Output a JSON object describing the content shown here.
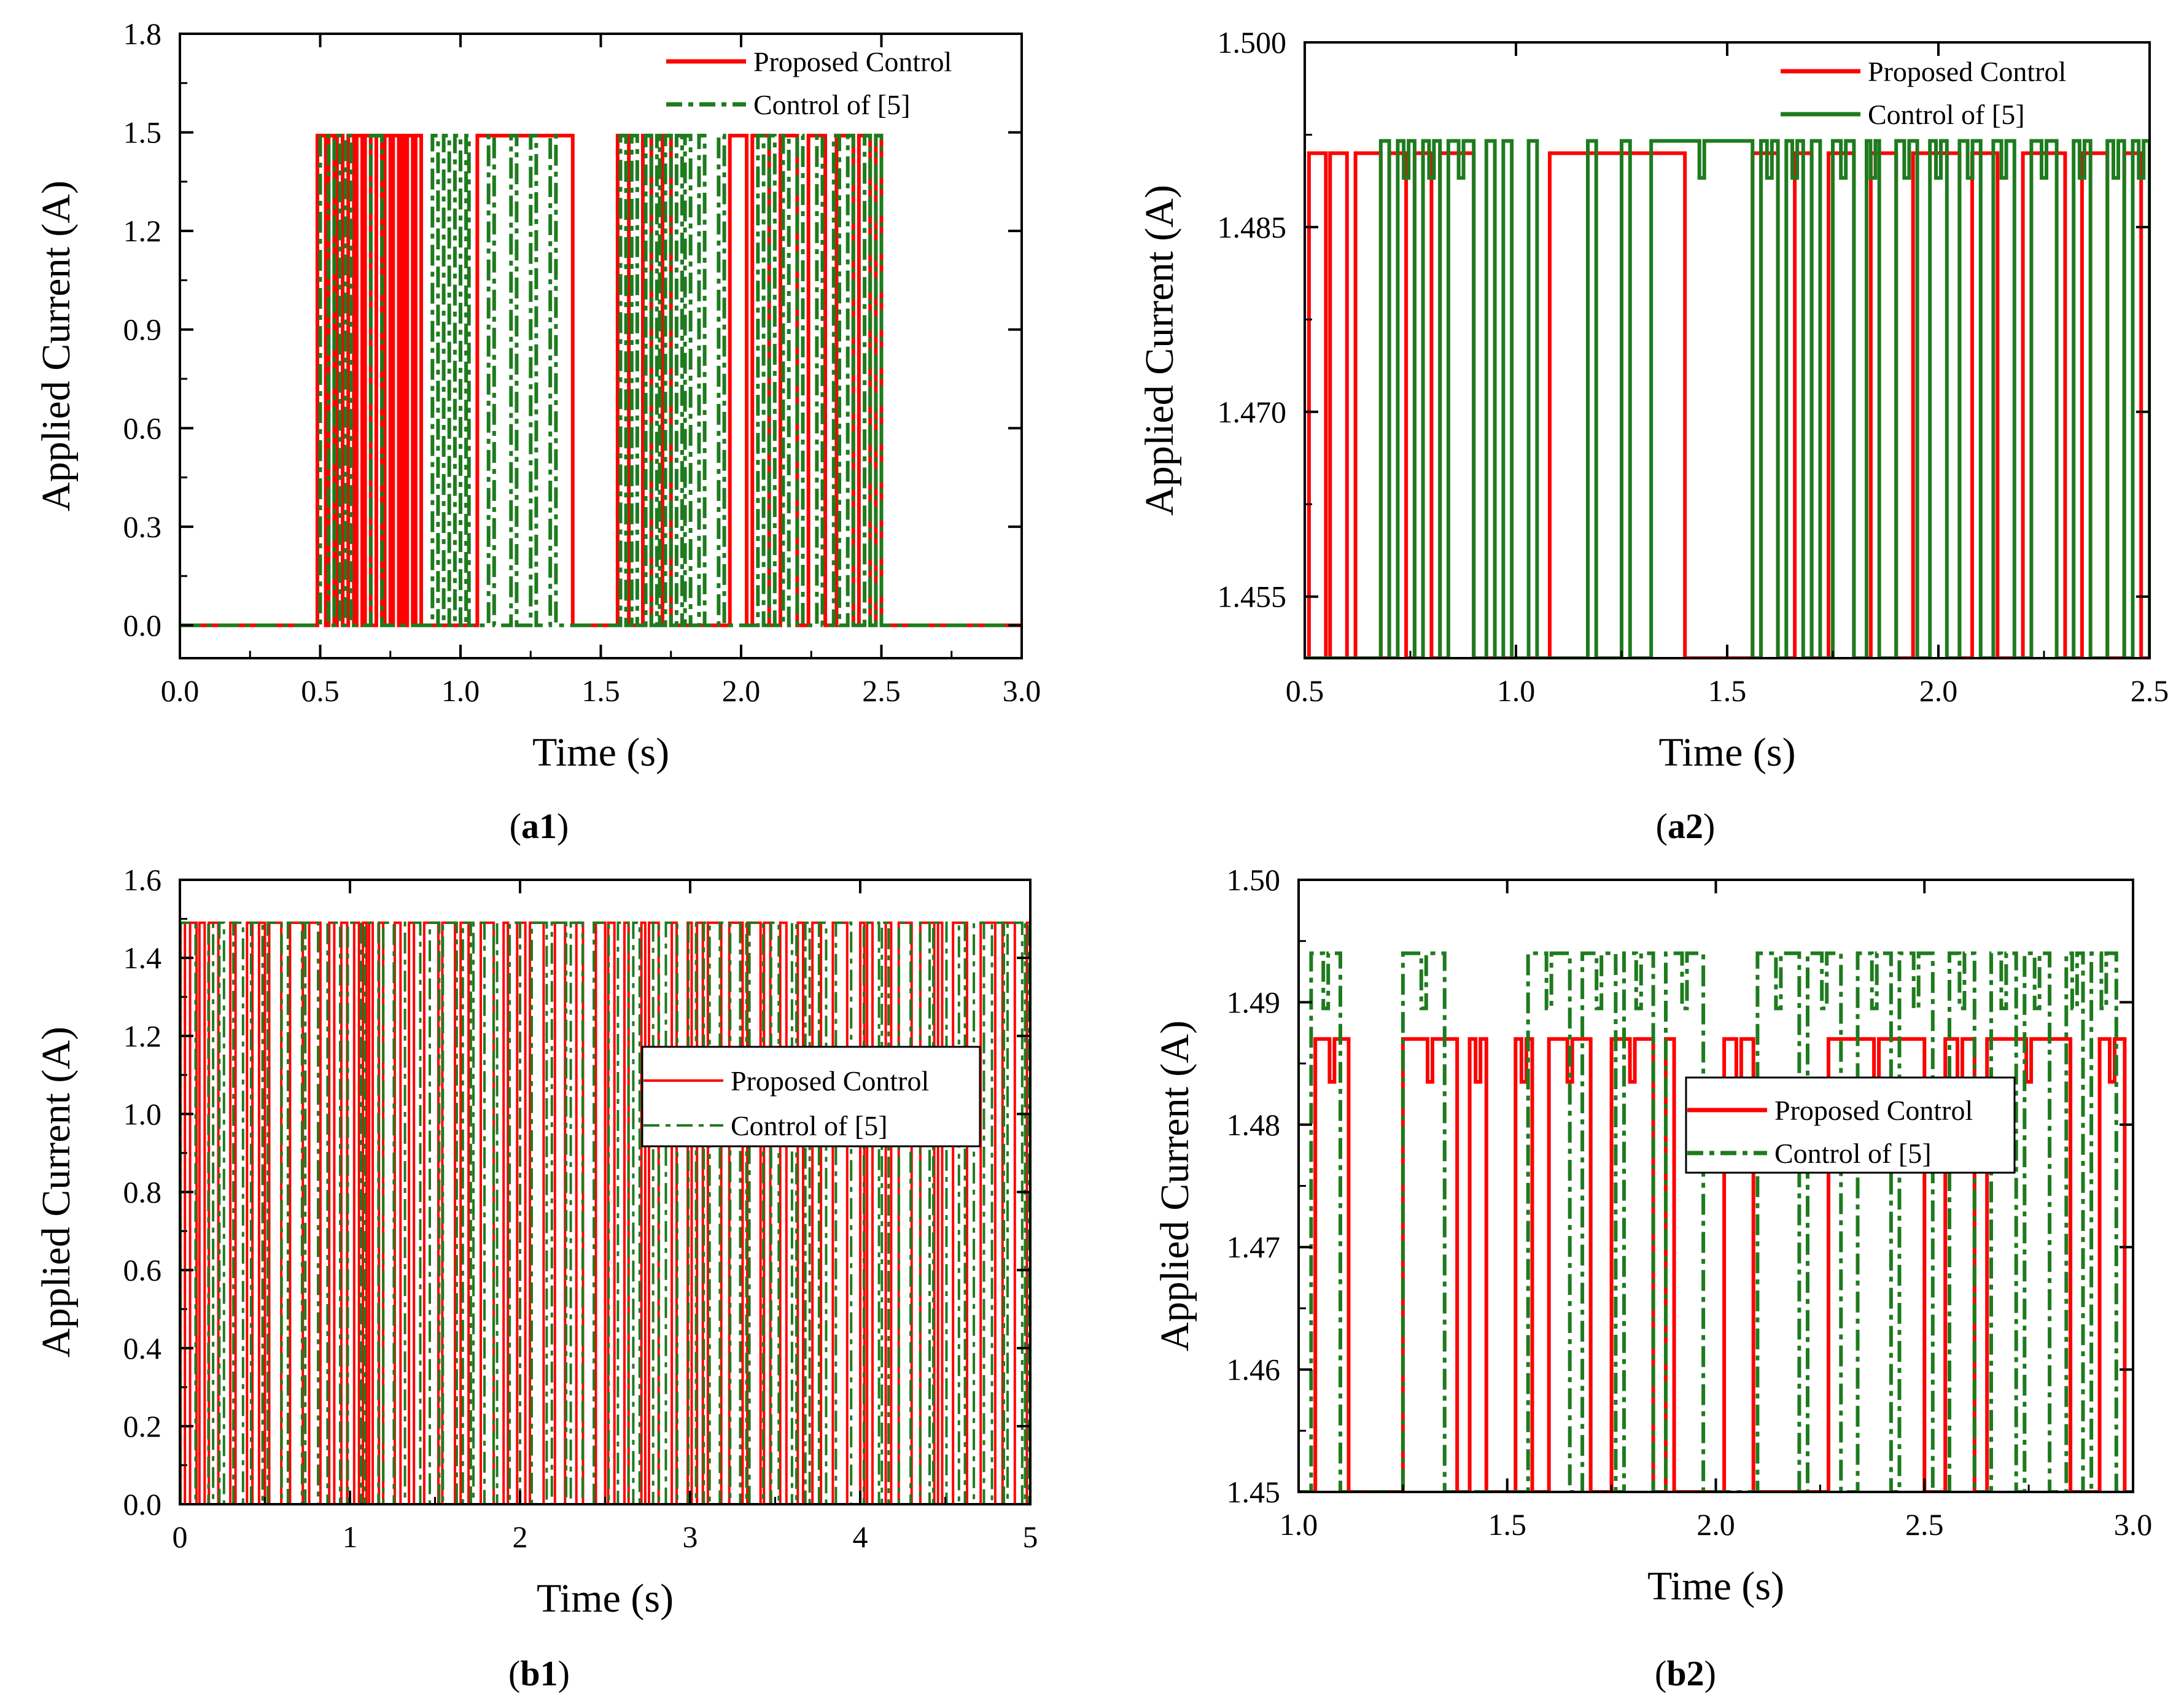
{
  "figure": {
    "panels": [
      {
        "id": "a1",
        "label_prefix": "(",
        "label_bold": "a1",
        "label_suffix": ")"
      },
      {
        "id": "a2",
        "label_prefix": "(",
        "label_bold": "a2",
        "label_suffix": ")"
      },
      {
        "id": "b1",
        "label_prefix": "(",
        "label_bold": "b1",
        "label_suffix": ")"
      },
      {
        "id": "b2",
        "label_prefix": "(",
        "label_bold": "b2",
        "label_suffix": ")"
      }
    ],
    "colors": {
      "proposed": "#ff0000",
      "reference": "#1e7b1e",
      "axis": "#000000"
    }
  },
  "chart_data": [
    {
      "id": "a1",
      "type": "line",
      "title": "",
      "xlabel": "Time (s)",
      "ylabel": "Applied Current (A)",
      "xlim": [
        0,
        3.0
      ],
      "ylim": [
        -0.1,
        1.8
      ],
      "xticks": [
        0,
        0.5,
        1.0,
        1.5,
        2.0,
        2.5,
        3.0
      ],
      "xtick_labels": [
        "0.0",
        "0.5",
        "1.0",
        "1.5",
        "2.0",
        "2.5",
        "3.0"
      ],
      "yticks": [
        0,
        0.3,
        0.6,
        0.9,
        1.2,
        1.5,
        1.8
      ],
      "ytick_labels": [
        "0.0",
        "0.3",
        "0.6",
        "0.9",
        "1.2",
        "1.5",
        "1.8"
      ],
      "legend": {
        "position": "top-right",
        "boxed": false
      },
      "series": [
        {
          "name": "Proposed Control",
          "role": "proposed",
          "style": "solid",
          "low": 0,
          "high": 1.49,
          "on_intervals": [
            [
              0.49,
              0.52
            ],
            [
              0.53,
              0.55
            ],
            [
              0.56,
              0.58
            ],
            [
              0.6,
              0.62
            ],
            [
              0.63,
              0.65
            ],
            [
              0.66,
              0.68
            ],
            [
              0.7,
              0.72
            ],
            [
              0.73,
              0.75
            ],
            [
              0.76,
              0.78
            ],
            [
              0.79,
              0.8
            ],
            [
              0.81,
              0.83
            ],
            [
              0.84,
              0.86
            ],
            [
              1.06,
              1.4
            ],
            [
              1.56,
              1.6
            ],
            [
              1.65,
              1.68
            ],
            [
              1.72,
              1.75
            ],
            [
              1.96,
              2.02
            ],
            [
              2.04,
              2.1
            ],
            [
              2.14,
              2.2
            ],
            [
              2.24,
              2.3
            ],
            [
              2.34,
              2.4
            ],
            [
              2.42,
              2.46
            ],
            [
              2.48,
              2.5
            ]
          ]
        },
        {
          "name": "Control of [5]",
          "role": "reference",
          "style": "dash-dot",
          "low": 0,
          "high": 1.49,
          "on_intervals": [
            [
              0.5,
              0.53
            ],
            [
              0.55,
              0.57
            ],
            [
              0.59,
              0.61
            ],
            [
              0.68,
              0.72
            ],
            [
              0.9,
              0.92
            ],
            [
              0.94,
              0.96
            ],
            [
              0.98,
              1.0
            ],
            [
              1.02,
              1.03
            ],
            [
              1.1,
              1.12
            ],
            [
              1.18,
              1.2
            ],
            [
              1.25,
              1.27
            ],
            [
              1.32,
              1.34
            ],
            [
              1.57,
              1.59
            ],
            [
              1.61,
              1.63
            ],
            [
              1.66,
              1.68
            ],
            [
              1.7,
              1.71
            ],
            [
              1.73,
              1.75
            ],
            [
              1.77,
              1.79
            ],
            [
              1.8,
              1.82
            ],
            [
              1.85,
              1.87
            ],
            [
              1.92,
              1.94
            ],
            [
              2.06,
              2.08
            ],
            [
              2.1,
              2.12
            ],
            [
              2.15,
              2.17
            ],
            [
              2.2,
              2.22
            ],
            [
              2.27,
              2.29
            ],
            [
              2.33,
              2.35
            ],
            [
              2.38,
              2.4
            ],
            [
              2.44,
              2.46
            ],
            [
              2.48,
              2.5
            ]
          ]
        }
      ]
    },
    {
      "id": "a2",
      "type": "line",
      "title": "",
      "xlabel": "Time (s)",
      "ylabel": "Applied Current (A)",
      "xlim": [
        0.5,
        2.5
      ],
      "ylim": [
        1.45,
        1.5
      ],
      "xticks": [
        0.5,
        1.0,
        1.5,
        2.0,
        2.5
      ],
      "xtick_labels": [
        "0.5",
        "1.0",
        "1.5",
        "2.0",
        "2.5"
      ],
      "yticks": [
        1.455,
        1.47,
        1.485,
        1.5
      ],
      "ytick_labels": [
        "1.455",
        "1.470",
        "1.485",
        "1.500"
      ],
      "legend": {
        "position": "top-right",
        "boxed": false
      },
      "series": [
        {
          "name": "Proposed Control",
          "role": "proposed",
          "style": "solid",
          "low": 1.45,
          "high": 1.491,
          "on_intervals": [
            [
              0.51,
              0.55
            ],
            [
              0.56,
              0.6
            ],
            [
              0.62,
              0.68
            ],
            [
              0.7,
              0.74
            ],
            [
              0.76,
              0.8
            ],
            [
              0.82,
              0.9
            ],
            [
              1.08,
              1.4
            ],
            [
              1.56,
              1.62
            ],
            [
              1.66,
              1.7
            ],
            [
              1.74,
              1.8
            ],
            [
              1.84,
              1.9
            ],
            [
              1.94,
              2.05
            ],
            [
              2.08,
              2.14
            ],
            [
              2.2,
              2.3
            ],
            [
              2.34,
              2.4
            ],
            [
              2.44,
              2.48
            ]
          ]
        },
        {
          "name": "Control of [5]",
          "role": "reference",
          "style": "solid",
          "low": 1.45,
          "high": 1.492,
          "dips": {
            "to": 1.489
          },
          "on_intervals": [
            [
              0.68,
              0.7
            ],
            [
              0.72,
              0.76
            ],
            [
              0.78,
              0.82
            ],
            [
              0.84,
              0.9
            ],
            [
              0.93,
              0.95
            ],
            [
              0.97,
              0.99
            ],
            [
              1.03,
              1.05
            ],
            [
              1.17,
              1.19
            ],
            [
              1.25,
              1.27
            ],
            [
              1.32,
              1.56
            ],
            [
              1.58,
              1.62
            ],
            [
              1.64,
              1.68
            ],
            [
              1.7,
              1.72
            ],
            [
              1.75,
              1.8
            ],
            [
              1.83,
              1.86
            ],
            [
              1.9,
              1.95
            ],
            [
              1.98,
              2.02
            ],
            [
              2.05,
              2.1
            ],
            [
              2.13,
              2.18
            ],
            [
              2.22,
              2.28
            ],
            [
              2.32,
              2.36
            ],
            [
              2.4,
              2.44
            ],
            [
              2.46,
              2.5
            ]
          ]
        }
      ]
    },
    {
      "id": "b1",
      "type": "line",
      "title": "",
      "xlabel": "Time (s)",
      "ylabel": "Applied Current (A)",
      "xlim": [
        0,
        5
      ],
      "ylim": [
        0,
        1.6
      ],
      "xticks": [
        0,
        1,
        2,
        3,
        4,
        5
      ],
      "xtick_labels": [
        "0",
        "1",
        "2",
        "3",
        "4",
        "5"
      ],
      "yticks": [
        0,
        0.2,
        0.4,
        0.6,
        0.8,
        1.0,
        1.2,
        1.4,
        1.6
      ],
      "ytick_labels": [
        "0.0",
        "0.2",
        "0.4",
        "0.6",
        "0.8",
        "1.0",
        "1.2",
        "1.4",
        "1.6"
      ],
      "legend": {
        "position": "center-right",
        "boxed": true
      },
      "series": [
        {
          "name": "Proposed Control",
          "role": "proposed",
          "style": "solid",
          "low": 0,
          "high": 1.49,
          "pattern": "dense-switching"
        },
        {
          "name": "Control of [5]",
          "role": "reference",
          "style": "dash-dot",
          "low": 0,
          "high": 1.49,
          "pattern": "dense-switching"
        }
      ]
    },
    {
      "id": "b2",
      "type": "line",
      "title": "",
      "xlabel": "Time (s)",
      "ylabel": "Applied Current (A)",
      "xlim": [
        1.0,
        3.0
      ],
      "ylim": [
        1.45,
        1.5
      ],
      "xticks": [
        1.0,
        1.5,
        2.0,
        2.5,
        3.0
      ],
      "xtick_labels": [
        "1.0",
        "1.5",
        "2.0",
        "2.5",
        "3.0"
      ],
      "yticks": [
        1.45,
        1.46,
        1.47,
        1.48,
        1.49,
        1.5
      ],
      "ytick_labels": [
        "1.45",
        "1.46",
        "1.47",
        "1.48",
        "1.49",
        "1.50"
      ],
      "legend": {
        "position": "center",
        "boxed": true
      },
      "series": [
        {
          "name": "Proposed Control",
          "role": "proposed",
          "style": "solid",
          "low": 1.45,
          "high": 1.487,
          "dips": {
            "to": 1.4835
          },
          "on_intervals": [
            [
              1.04,
              1.12
            ],
            [
              1.25,
              1.38
            ],
            [
              1.41,
              1.45
            ],
            [
              1.52,
              1.56
            ],
            [
              1.6,
              1.7
            ],
            [
              1.75,
              1.85
            ],
            [
              1.88,
              1.9
            ],
            [
              2.02,
              2.09
            ],
            [
              2.27,
              2.5
            ],
            [
              2.55,
              2.62
            ],
            [
              2.65,
              2.85
            ],
            [
              2.92,
              2.98
            ]
          ]
        },
        {
          "name": "Control of [5]",
          "role": "reference",
          "style": "dash-dot",
          "low": 1.45,
          "high": 1.494,
          "dips": {
            "to": 1.4895
          },
          "on_intervals": [
            [
              1.03,
              1.1
            ],
            [
              1.25,
              1.35
            ],
            [
              1.55,
              1.65
            ],
            [
              1.68,
              1.76
            ],
            [
              1.78,
              1.85
            ],
            [
              1.88,
              1.97
            ],
            [
              2.1,
              2.2
            ],
            [
              2.22,
              2.3
            ],
            [
              2.34,
              2.42
            ],
            [
              2.44,
              2.52
            ],
            [
              2.56,
              2.62
            ],
            [
              2.66,
              2.72
            ],
            [
              2.74,
              2.8
            ],
            [
              2.84,
              2.88
            ],
            [
              2.9,
              2.96
            ]
          ]
        }
      ]
    }
  ]
}
